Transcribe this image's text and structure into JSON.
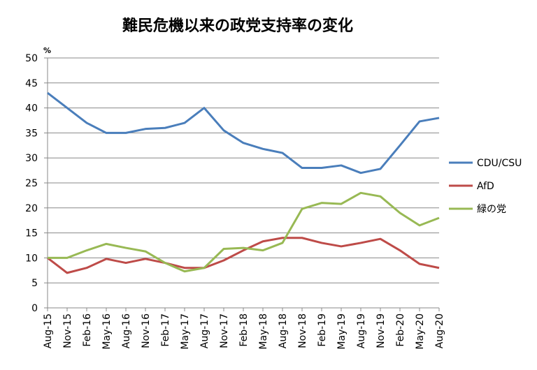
{
  "chart_data": {
    "type": "line",
    "title": "難民危機以来の政党支持率の変化",
    "y_unit": "%",
    "categories": [
      "Aug-15",
      "Nov-15",
      "Feb-16",
      "May-16",
      "Aug-16",
      "Nov-16",
      "Feb-17",
      "May-17",
      "Aug-17",
      "Nov-17",
      "Feb-18",
      "May-18",
      "Aug-18",
      "Nov-18",
      "Feb-19",
      "May-19",
      "Aug-19",
      "Nov-19",
      "Feb-20",
      "May-20",
      "Aug-20"
    ],
    "series": [
      {
        "name": "CDU/CSU",
        "color": "#4a7ebb",
        "values": [
          43,
          40,
          37,
          35,
          35,
          35.8,
          36,
          37,
          40,
          35.5,
          33,
          31.8,
          31,
          28,
          28,
          28.5,
          27,
          27.8,
          32.5,
          37.3,
          38
        ]
      },
      {
        "name": "AfD",
        "color": "#be4b48",
        "values": [
          10,
          7,
          8,
          9.8,
          9,
          9.8,
          9,
          8,
          8,
          9.5,
          11.5,
          13.3,
          14,
          14,
          13,
          12.3,
          13,
          13.8,
          11.5,
          8.8,
          8
        ]
      },
      {
        "name": "緑の党",
        "color": "#98b954",
        "values": [
          10,
          10,
          11.5,
          12.8,
          12,
          11.3,
          9,
          7.3,
          8,
          11.8,
          12,
          11.5,
          13,
          19.8,
          21,
          20.8,
          23,
          22.3,
          19,
          16.5,
          18
        ]
      }
    ],
    "ylim": [
      0,
      50
    ],
    "yticks": [
      0,
      5,
      10,
      15,
      20,
      25,
      30,
      35,
      40,
      45,
      50
    ],
    "grid": true,
    "legend": "right"
  }
}
